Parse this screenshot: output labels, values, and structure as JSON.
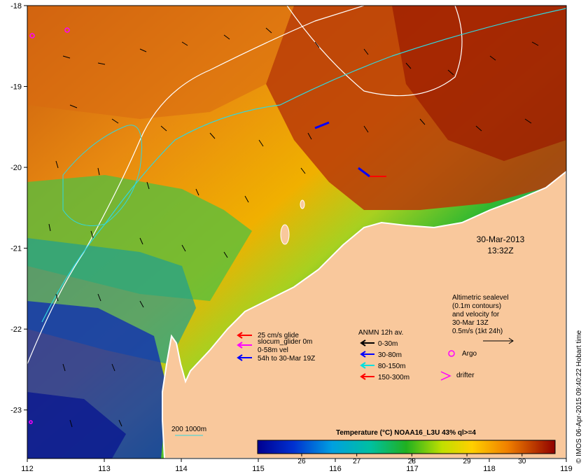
{
  "map": {
    "x_ticks": [
      "112",
      "113",
      "114",
      "115",
      "116",
      "117",
      "118",
      "119"
    ],
    "y_ticks": [
      "-18",
      "-19",
      "-20",
      "-21",
      "-22",
      "-23"
    ],
    "lon_range": [
      112,
      119
    ],
    "lat_range": [
      -23.6,
      -18
    ]
  },
  "date_block": {
    "date": "30-Mar-2013",
    "time": "13:32Z"
  },
  "altimetry": {
    "lines": [
      "Altimetric sealevel",
      "(0.1m contours)",
      "and velocity for",
      "30-Mar 13Z",
      "0.5m/s (1kt 24h)"
    ]
  },
  "argo_label": "Argo",
  "drifter_label": "drifter",
  "glider_legend": {
    "lines": [
      "25 cm/s glide",
      "slocum_glider 0m",
      "0-58m vel",
      "54h to 30-Mar 19Z"
    ],
    "colors": [
      "#ff0000",
      "#ff00ff",
      "#0000ff"
    ]
  },
  "anmn_legend": {
    "title": "ANMN 12h av.",
    "items": [
      {
        "label": "0-30m",
        "color": "#000000"
      },
      {
        "label": "30-80m",
        "color": "#0000ff"
      },
      {
        "label": "80-150m",
        "color": "#00e0e0"
      },
      {
        "label": "150-300m",
        "color": "#ff0000"
      }
    ]
  },
  "bathymetry_legend": "200  1000m",
  "colorbar": {
    "title": "Temperature (°C) NOAA16_L3U 43% ql>=4",
    "ticks": [
      "26",
      "27",
      "28",
      "29",
      "30"
    ],
    "tick_values": [
      26,
      27,
      28,
      29,
      30
    ],
    "range": [
      25.2,
      30.6
    ]
  },
  "credit": "© IMOS 06-Apr-2015 09:40:22 Hobart time",
  "colors": {
    "land": "#f9c89c",
    "warm": "#b83000",
    "cold": "#0018a0",
    "argo": "#ff00ff"
  }
}
